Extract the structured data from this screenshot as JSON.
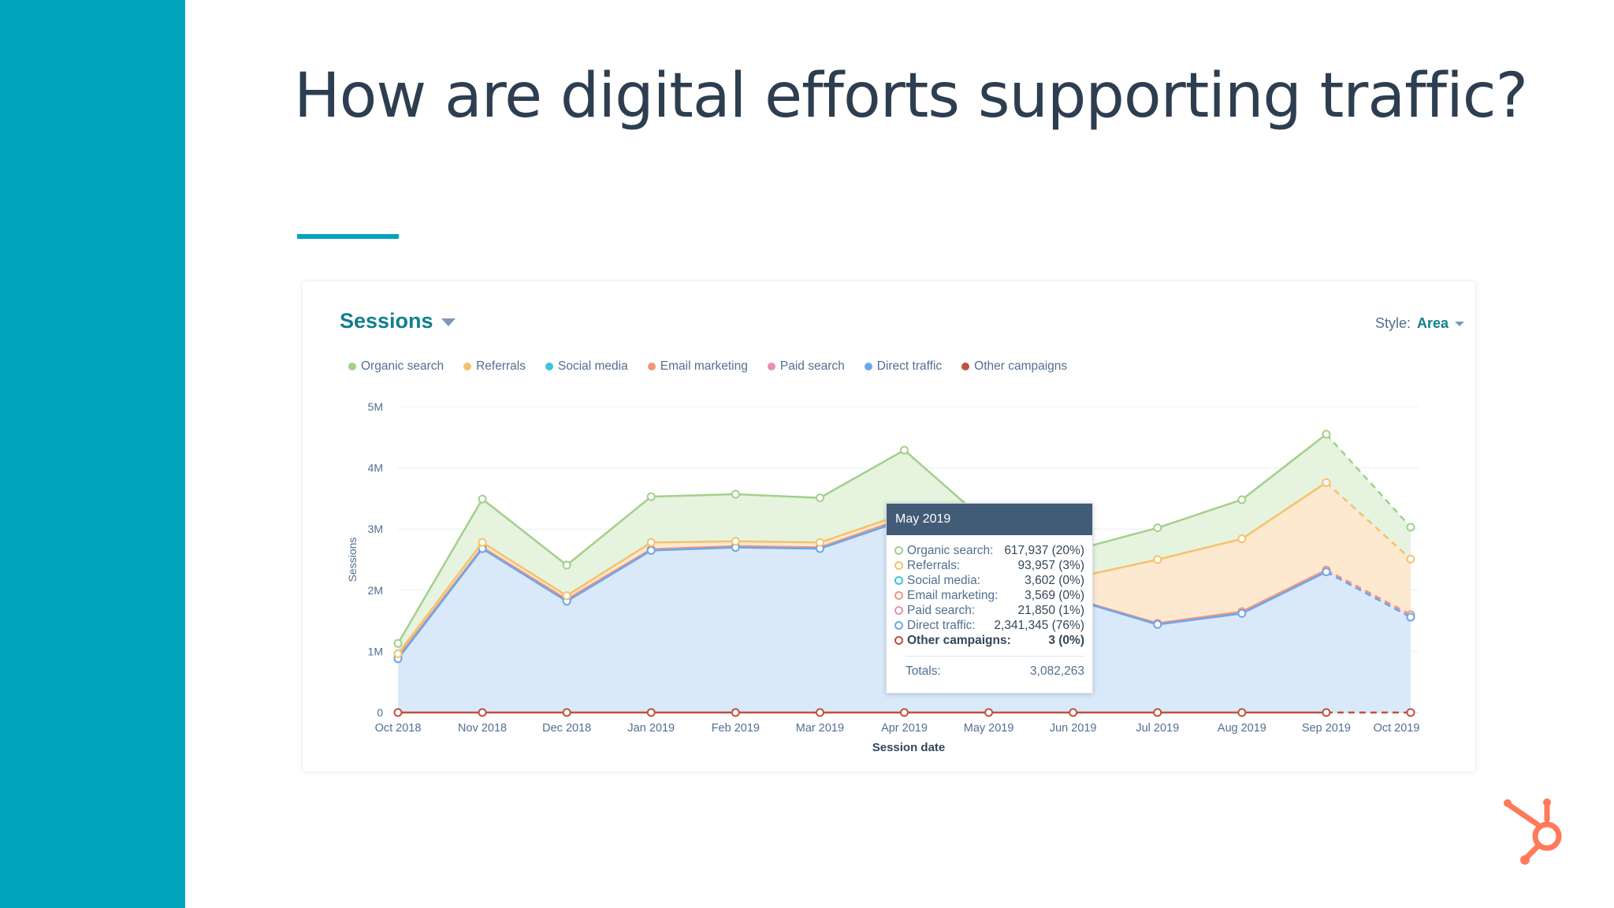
{
  "slide": {
    "title": "How are digital efforts supporting traffic?"
  },
  "card": {
    "sessions_label": "Sessions",
    "style_label": "Style:",
    "style_value": "Area"
  },
  "legend": [
    {
      "label": "Organic search",
      "color": "#a3d08a"
    },
    {
      "label": "Referrals",
      "color": "#f5c26b"
    },
    {
      "label": "Social media",
      "color": "#3bc4dc"
    },
    {
      "label": "Email marketing",
      "color": "#f2957c"
    },
    {
      "label": "Paid search",
      "color": "#ea90b1"
    },
    {
      "label": "Direct traffic",
      "color": "#6aa8ec"
    },
    {
      "label": "Other campaigns",
      "color": "#c0503c"
    }
  ],
  "chart_data": {
    "type": "area",
    "stacked": true,
    "xlabel": "Session date",
    "ylabel": "Sessions",
    "ylim": [
      0,
      5000000
    ],
    "yticks": [
      0,
      1000000,
      2000000,
      3000000,
      4000000,
      5000000
    ],
    "ytick_labels": [
      "0",
      "1M",
      "2M",
      "3M",
      "4M",
      "5M"
    ],
    "categories": [
      "Oct 2018",
      "Nov 2018",
      "Dec 2018",
      "Jan 2019",
      "Feb 2019",
      "Mar 2019",
      "Apr 2019",
      "May 2019",
      "Jun 2019",
      "Jul 2019",
      "Aug 2019",
      "Sep 2019",
      "Oct 2019"
    ],
    "grid": true,
    "legend_position": "top-left",
    "dashed_last_segment": true,
    "stack_totals": {
      "direct_paid": [
        880000,
        2680000,
        1820000,
        2650000,
        2700000,
        2680000,
        3150000,
        2370000,
        1850000,
        1440000,
        1620000,
        2300000,
        1560000
      ],
      "with_social_email": [
        910000,
        2700000,
        1850000,
        2670000,
        2720000,
        2700000,
        3180000,
        2380000,
        1860000,
        1460000,
        1650000,
        2330000,
        1600000
      ],
      "with_referrals": [
        960000,
        2780000,
        1910000,
        2780000,
        2800000,
        2780000,
        3250000,
        2470000,
        2200000,
        2500000,
        2840000,
        3760000,
        2510000
      ],
      "with_organic": [
        1130000,
        3490000,
        2410000,
        3530000,
        3570000,
        3510000,
        4290000,
        3080000,
        2650000,
        3020000,
        3480000,
        4550000,
        3030000
      ],
      "other_campaigns": [
        0,
        0,
        0,
        0,
        0,
        0,
        0,
        3,
        0,
        0,
        0,
        0,
        0
      ]
    },
    "series_colors": {
      "organic": "#a3d08a",
      "referrals": "#f5c26b",
      "social": "#3bc4dc",
      "email": "#f2957c",
      "paid": "#ea90b1",
      "direct": "#6aa8ec",
      "other": "#c0503c"
    }
  },
  "tooltip": {
    "title": "May 2019",
    "rows": [
      {
        "label": "Organic search:",
        "value": "617,937 (20%)",
        "color": "#a3d08a"
      },
      {
        "label": "Referrals:",
        "value": "93,957 (3%)",
        "color": "#f5c26b"
      },
      {
        "label": "Social media:",
        "value": "3,602 (0%)",
        "color": "#3bc4dc"
      },
      {
        "label": "Email marketing:",
        "value": "3,569 (0%)",
        "color": "#f2957c"
      },
      {
        "label": "Paid search:",
        "value": "21,850 (1%)",
        "color": "#ea90b1"
      },
      {
        "label": "Direct traffic:",
        "value": "2,341,345 (76%)",
        "color": "#6aa8ec"
      },
      {
        "label": "Other campaigns:",
        "value": "3 (0%)",
        "color": "#c0503c",
        "bold": true
      }
    ],
    "total_label": "Totals:",
    "total_value": "3,082,263"
  },
  "brand": {
    "logo_icon": "hubspot-sprocket-icon",
    "logo_color": "#ff7a59"
  }
}
